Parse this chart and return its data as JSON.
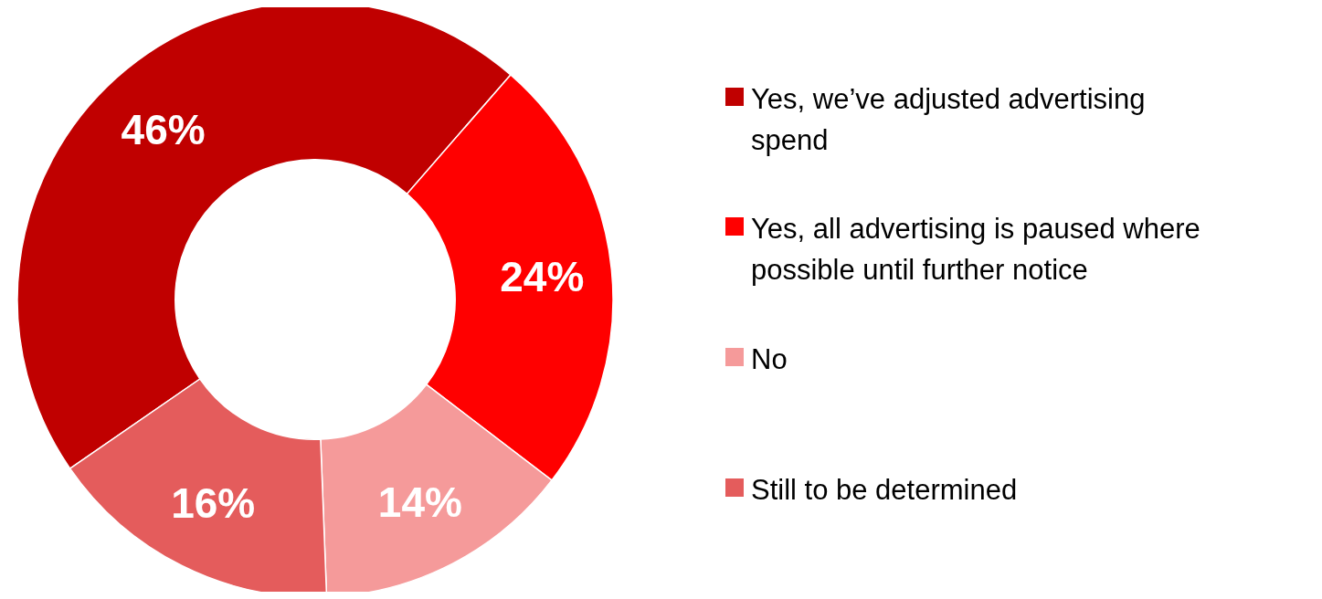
{
  "chart_data": {
    "type": "donut",
    "categories": [
      "Yes, we’ve adjusted advertising spend",
      "Yes, all advertising is paused where possible until further notice",
      "No",
      "Still to be determined"
    ],
    "values": [
      46,
      24,
      14,
      16
    ],
    "colors": [
      "#c00000",
      "#ff0000",
      "#f59a9a",
      "#e45c5c"
    ],
    "value_labels": [
      "46%",
      "24%",
      "14%",
      "16%"
    ],
    "legend": "right"
  }
}
